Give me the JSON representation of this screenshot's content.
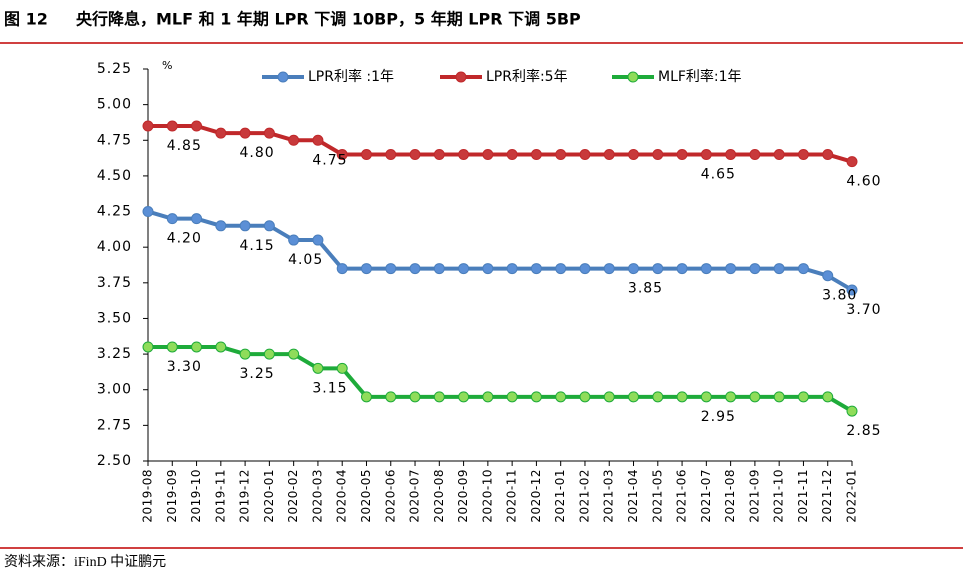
{
  "chart_data": {
    "type": "line",
    "figure_label": "图 12",
    "title": "央行降息，MLF 和 1 年期 LPR 下调 10BP，5 年期 LPR 下调 5BP",
    "y_unit": "%",
    "source": "资料来源：iFinD 中证鹏元",
    "categories": [
      "2019-08",
      "2019-09",
      "2019-10",
      "2019-11",
      "2019-12",
      "2020-01",
      "2020-02",
      "2020-03",
      "2020-04",
      "2020-05",
      "2020-06",
      "2020-07",
      "2020-08",
      "2020-09",
      "2020-10",
      "2020-11",
      "2020-12",
      "2021-01",
      "2021-02",
      "2021-03",
      "2021-04",
      "2021-05",
      "2021-06",
      "2021-07",
      "2021-08",
      "2021-09",
      "2021-10",
      "2021-11",
      "2021-12",
      "2022-01"
    ],
    "series": [
      {
        "name": "LPR利率 :1年",
        "color": "#4a7ebb",
        "marker_color": "#5b8fd6",
        "values": [
          4.25,
          4.2,
          4.2,
          4.15,
          4.15,
          4.15,
          4.05,
          4.05,
          3.85,
          3.85,
          3.85,
          3.85,
          3.85,
          3.85,
          3.85,
          3.85,
          3.85,
          3.85,
          3.85,
          3.85,
          3.85,
          3.85,
          3.85,
          3.85,
          3.85,
          3.85,
          3.85,
          3.85,
          3.8,
          3.7
        ],
        "value_labels": [
          null,
          "4.20",
          null,
          null,
          "4.15",
          null,
          "4.05",
          null,
          null,
          null,
          null,
          null,
          null,
          null,
          null,
          null,
          null,
          null,
          null,
          null,
          "3.85",
          null,
          null,
          null,
          null,
          null,
          null,
          null,
          "3.80",
          "3.70"
        ]
      },
      {
        "name": "LPR利率:5年",
        "color": "#c0282a",
        "marker_color": "#c8393b",
        "values": [
          4.85,
          4.85,
          4.85,
          4.8,
          4.8,
          4.8,
          4.75,
          4.75,
          4.65,
          4.65,
          4.65,
          4.65,
          4.65,
          4.65,
          4.65,
          4.65,
          4.65,
          4.65,
          4.65,
          4.65,
          4.65,
          4.65,
          4.65,
          4.65,
          4.65,
          4.65,
          4.65,
          4.65,
          4.65,
          4.6
        ],
        "value_labels": [
          null,
          "4.85",
          null,
          null,
          "4.80",
          null,
          null,
          "4.75",
          null,
          null,
          null,
          null,
          null,
          null,
          null,
          null,
          null,
          null,
          null,
          null,
          null,
          null,
          null,
          "4.65",
          null,
          null,
          null,
          null,
          null,
          "4.60"
        ]
      },
      {
        "name": "MLF利率:1年",
        "color": "#1eab3a",
        "marker_color": "#8fdc5a",
        "values": [
          3.3,
          3.3,
          3.3,
          3.3,
          3.25,
          3.25,
          3.25,
          3.15,
          3.15,
          2.95,
          2.95,
          2.95,
          2.95,
          2.95,
          2.95,
          2.95,
          2.95,
          2.95,
          2.95,
          2.95,
          2.95,
          2.95,
          2.95,
          2.95,
          2.95,
          2.95,
          2.95,
          2.95,
          2.95,
          2.85
        ],
        "value_labels": [
          null,
          "3.30",
          null,
          null,
          "3.25",
          null,
          null,
          "3.15",
          null,
          null,
          null,
          null,
          null,
          null,
          null,
          null,
          null,
          null,
          null,
          null,
          null,
          null,
          null,
          "2.95",
          null,
          null,
          null,
          null,
          null,
          "2.85"
        ]
      }
    ],
    "ylim": [
      2.5,
      5.25
    ],
    "yticks": [
      {
        "value": 2.5,
        "label": "2.50"
      },
      {
        "value": 2.75,
        "label": "2.75"
      },
      {
        "value": 3,
        "label": "3.00"
      },
      {
        "value": 3.25,
        "label": "3.25"
      },
      {
        "value": 3.5,
        "label": "3.50"
      },
      {
        "value": 3.75,
        "label": "3.75"
      },
      {
        "value": 4,
        "label": "4.00"
      },
      {
        "value": 4.25,
        "label": "4.25"
      },
      {
        "value": 4.5,
        "label": "4.50"
      },
      {
        "value": 4.75,
        "label": "4.75"
      },
      {
        "value": 5,
        "label": "5.00"
      },
      {
        "value": 5.25,
        "label": "5.25"
      }
    ],
    "grid": false,
    "legend": "top"
  }
}
